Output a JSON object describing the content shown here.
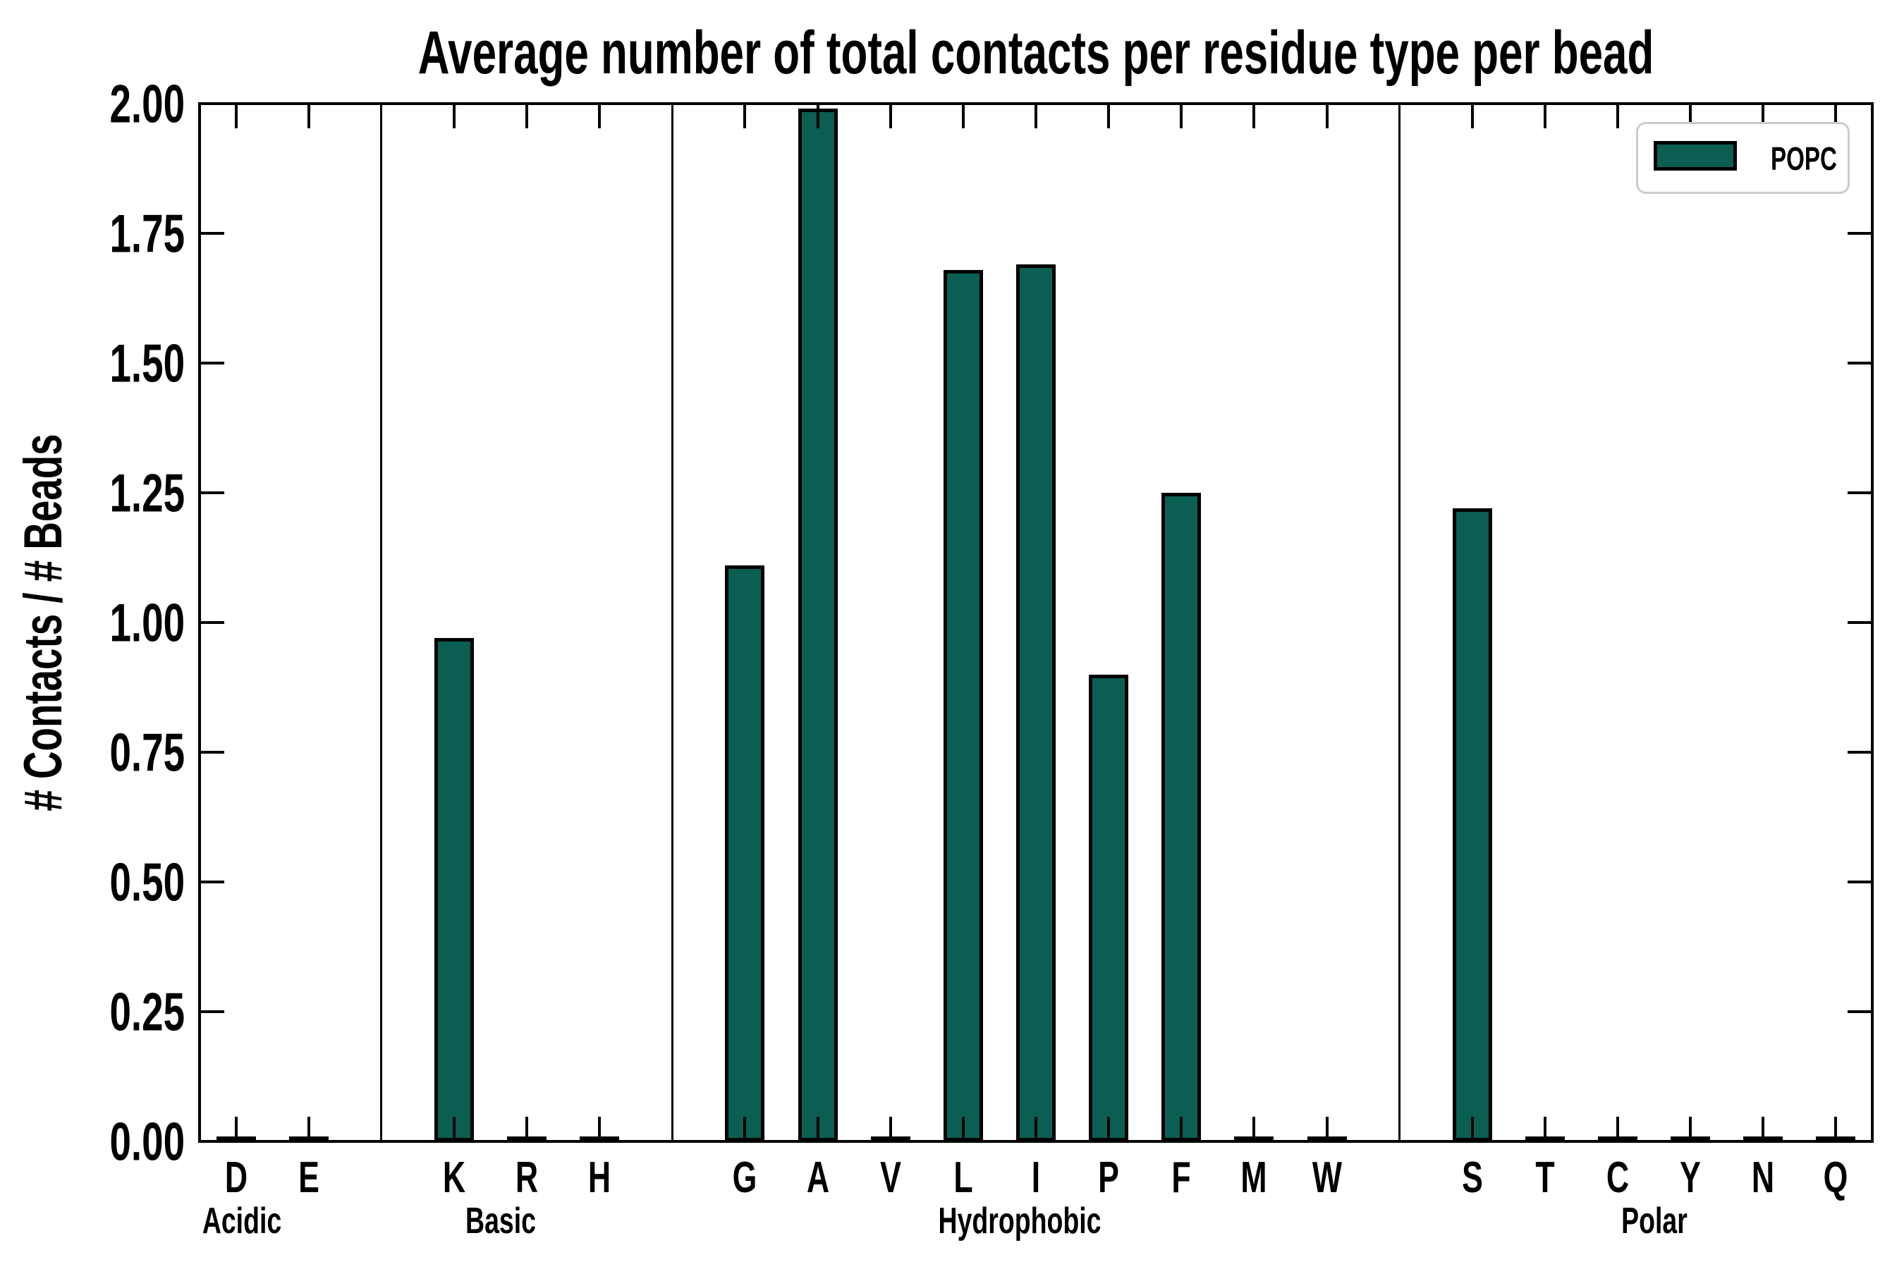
{
  "title": "Average number of total contacts per residue type per bead",
  "y_axis": {
    "label": "# Contacts / # Beads",
    "tick_labels": [
      "0.00",
      "0.25",
      "0.50",
      "0.75",
      "1.00",
      "1.25",
      "1.50",
      "1.75",
      "2.00"
    ],
    "min": 0,
    "max": 2
  },
  "legend": {
    "label": "POPC"
  },
  "colors": {
    "bar_fill": "#0a5f52",
    "bar_edge": "#000000",
    "axis": "#000000",
    "legend_border": "#cccccc"
  },
  "groups": [
    {
      "label": "Acidic",
      "residues": [
        {
          "code": "D",
          "value": 0
        },
        {
          "code": "E",
          "value": 0
        }
      ]
    },
    {
      "label": "Basic",
      "residues": [
        {
          "code": "K",
          "value": 0.97
        },
        {
          "code": "R",
          "value": 0
        },
        {
          "code": "H",
          "value": 0
        }
      ]
    },
    {
      "label": "Hydrophobic",
      "residues": [
        {
          "code": "G",
          "value": 1.11
        },
        {
          "code": "A",
          "value": 1.99
        },
        {
          "code": "V",
          "value": 0
        },
        {
          "code": "L",
          "value": 1.68
        },
        {
          "code": "I",
          "value": 1.69
        },
        {
          "code": "P",
          "value": 0.9
        },
        {
          "code": "F",
          "value": 1.25
        },
        {
          "code": "M",
          "value": 0
        },
        {
          "code": "W",
          "value": 0
        }
      ]
    },
    {
      "label": "Polar",
      "residues": [
        {
          "code": "S",
          "value": 1.22
        },
        {
          "code": "T",
          "value": 0
        },
        {
          "code": "C",
          "value": 0
        },
        {
          "code": "Y",
          "value": 0
        },
        {
          "code": "N",
          "value": 0
        },
        {
          "code": "Q",
          "value": 0
        }
      ]
    }
  ],
  "chart_data": {
    "type": "bar",
    "title": "Average number of total contacts per residue type per bead",
    "xlabel": "",
    "ylabel": "# Contacts / # Beads",
    "ylim": [
      0,
      2.0
    ],
    "ytick_step": 0.25,
    "grid": false,
    "legend_position": "upper right",
    "categories": [
      "D",
      "E",
      "K",
      "R",
      "H",
      "G",
      "A",
      "V",
      "L",
      "I",
      "P",
      "F",
      "M",
      "W",
      "S",
      "T",
      "C",
      "Y",
      "N",
      "Q"
    ],
    "category_groups": {
      "Acidic": [
        "D",
        "E"
      ],
      "Basic": [
        "K",
        "R",
        "H"
      ],
      "Hydrophobic": [
        "G",
        "A",
        "V",
        "L",
        "I",
        "P",
        "F",
        "M",
        "W"
      ],
      "Polar": [
        "S",
        "T",
        "C",
        "Y",
        "N",
        "Q"
      ]
    },
    "series": [
      {
        "name": "POPC",
        "color": "#0a5f52",
        "values": [
          0,
          0,
          0.97,
          0,
          0,
          1.11,
          1.99,
          0,
          1.68,
          1.69,
          0.9,
          1.25,
          0,
          0,
          1.22,
          0,
          0,
          0,
          0,
          0
        ]
      }
    ]
  }
}
